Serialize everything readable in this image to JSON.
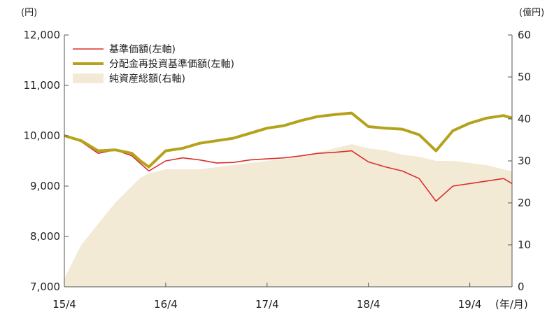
{
  "chart_data": {
    "type": "line",
    "title": "",
    "left_unit": "(円)",
    "right_unit": "(億円)",
    "x_unit": "(年/月)",
    "x_tick_labels": [
      "15/4",
      "16/4",
      "17/4",
      "18/4",
      "19/4"
    ],
    "x_range": [
      "2015-04",
      "2019-09"
    ],
    "left_axis": {
      "min": 7000,
      "max": 12000,
      "ticks": [
        7000,
        8000,
        9000,
        10000,
        11000,
        12000
      ],
      "tick_labels": [
        "7,000",
        "8,000",
        "9,000",
        "10,000",
        "11,000",
        "12,000"
      ]
    },
    "right_axis": {
      "min": 0,
      "max": 60,
      "ticks": [
        0,
        10,
        20,
        30,
        40,
        50,
        60
      ],
      "tick_labels": [
        "0",
        "10",
        "20",
        "30",
        "40",
        "50",
        "60"
      ]
    },
    "grid": false,
    "legend_position": "top-left",
    "legend": [
      "基準価額(左軸)",
      "分配金再投資基準価額(左軸)",
      "純資産総額(右軸)"
    ],
    "series": [
      {
        "name": "基準価額(左軸)",
        "axis": "left",
        "kind": "line",
        "color": "#d9302c",
        "x": [
          "2015-04",
          "2015-06",
          "2015-08",
          "2015-10",
          "2015-12",
          "2016-01",
          "2016-02",
          "2016-04",
          "2016-06",
          "2016-08",
          "2016-10",
          "2016-12",
          "2017-02",
          "2017-04",
          "2017-06",
          "2017-08",
          "2017-10",
          "2017-12",
          "2018-02",
          "2018-04",
          "2018-06",
          "2018-08",
          "2018-10",
          "2018-12",
          "2019-02",
          "2019-04",
          "2019-06",
          "2019-08",
          "2019-09"
        ],
        "values": [
          10000,
          9880,
          9650,
          9720,
          9600,
          9450,
          9300,
          9500,
          9560,
          9520,
          9460,
          9470,
          9520,
          9540,
          9560,
          9600,
          9650,
          9670,
          9700,
          9480,
          9380,
          9300,
          9150,
          8700,
          9000,
          9050,
          9100,
          9150,
          9050
        ]
      },
      {
        "name": "分配金再投資基準価額(左軸)",
        "axis": "left",
        "kind": "line",
        "color": "#b5a21c",
        "x": [
          "2015-04",
          "2015-06",
          "2015-08",
          "2015-10",
          "2015-12",
          "2016-01",
          "2016-02",
          "2016-04",
          "2016-06",
          "2016-08",
          "2016-10",
          "2016-12",
          "2017-02",
          "2017-04",
          "2017-06",
          "2017-08",
          "2017-10",
          "2017-12",
          "2018-02",
          "2018-04",
          "2018-06",
          "2018-08",
          "2018-10",
          "2018-12",
          "2019-02",
          "2019-04",
          "2019-06",
          "2019-08",
          "2019-09"
        ],
        "values": [
          10000,
          9900,
          9700,
          9720,
          9650,
          9500,
          9380,
          9700,
          9750,
          9850,
          9900,
          9950,
          10050,
          10150,
          10200,
          10300,
          10380,
          10420,
          10450,
          10180,
          10150,
          10130,
          10020,
          9700,
          10100,
          10250,
          10350,
          10400,
          10350
        ]
      },
      {
        "name": "純資産総額(右軸)",
        "axis": "right",
        "kind": "area",
        "color": "#f3ead6",
        "x": [
          "2015-04",
          "2015-06",
          "2015-08",
          "2015-10",
          "2015-12",
          "2016-01",
          "2016-02",
          "2016-04",
          "2016-06",
          "2016-08",
          "2016-10",
          "2016-12",
          "2017-02",
          "2017-04",
          "2017-06",
          "2017-08",
          "2017-10",
          "2017-12",
          "2018-02",
          "2018-04",
          "2018-06",
          "2018-08",
          "2018-10",
          "2018-12",
          "2019-02",
          "2019-04",
          "2019-06",
          "2019-08",
          "2019-09"
        ],
        "values": [
          2,
          10,
          15,
          20,
          24,
          26,
          27,
          28,
          28,
          28,
          28.5,
          29,
          29.5,
          30,
          30.5,
          31,
          32,
          33,
          34,
          33,
          32.5,
          31.5,
          31,
          30,
          30,
          29.5,
          29,
          28,
          27.5
        ]
      }
    ]
  }
}
